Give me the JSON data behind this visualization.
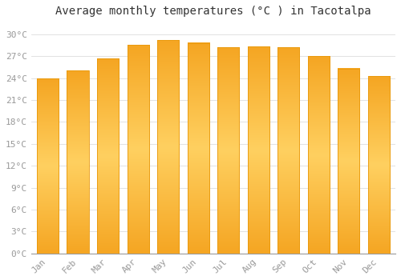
{
  "title": "Average monthly temperatures (°C ) in Tacotalpa",
  "months": [
    "Jan",
    "Feb",
    "Mar",
    "Apr",
    "May",
    "Jun",
    "Jul",
    "Aug",
    "Sep",
    "Oct",
    "Nov",
    "Dec"
  ],
  "values": [
    23.9,
    25.0,
    26.7,
    28.5,
    29.2,
    28.8,
    28.2,
    28.3,
    28.2,
    27.0,
    25.3,
    24.3
  ],
  "bar_color_outer": "#F5A623",
  "bar_color_inner": "#FFD060",
  "bar_edge_color": "#E8980A",
  "yticks": [
    0,
    3,
    6,
    9,
    12,
    15,
    18,
    21,
    24,
    27,
    30
  ],
  "ylim": [
    0,
    31.5
  ],
  "bg_color": "#FFFFFF",
  "grid_color": "#DDDDDD",
  "title_fontsize": 10,
  "tick_fontsize": 8,
  "tick_color": "#999999"
}
